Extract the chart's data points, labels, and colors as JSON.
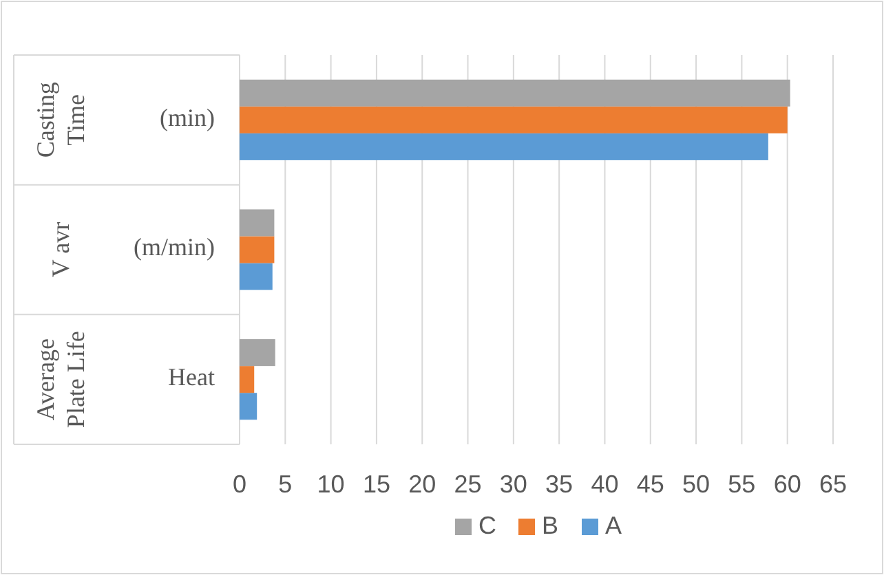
{
  "chart_data": {
    "type": "bar",
    "orientation": "horizontal",
    "categories": [
      "(min)",
      "(m/min)",
      "Heat"
    ],
    "annotations": [
      "Casting Time",
      "V avr",
      "Average Plate Life"
    ],
    "series": [
      {
        "name": "A",
        "color": "#5b9bd5",
        "values": [
          57.9,
          3.6,
          1.9
        ]
      },
      {
        "name": "B",
        "color": "#ed7d31",
        "values": [
          60.0,
          3.8,
          1.6
        ]
      },
      {
        "name": "C",
        "color": "#a5a5a5",
        "values": [
          60.3,
          3.8,
          3.9
        ]
      }
    ],
    "xlim": [
      0,
      65
    ],
    "xticks": [
      0,
      5,
      10,
      15,
      20,
      25,
      30,
      35,
      40,
      45,
      50,
      55,
      60,
      65
    ],
    "grid": "x",
    "legend": "bottom"
  }
}
